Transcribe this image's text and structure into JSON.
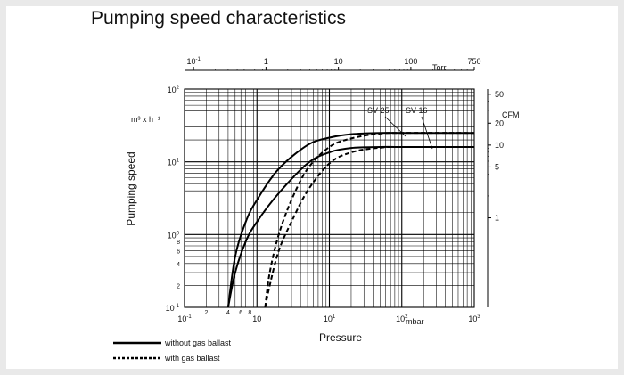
{
  "title": "Pumping speed characteristics",
  "legend": {
    "solid": "without gas ballast",
    "dashed": "with gas ballast"
  },
  "chart_data": {
    "type": "line",
    "title": "Pumping speed characteristics",
    "xlabel": "Pressure",
    "xunit": "mbar",
    "ylabel": "Pumping speed",
    "yunit": "m³ x h⁻¹",
    "x_scale": "log",
    "y_scale": "log",
    "xlim": [
      0.1,
      1000
    ],
    "ylim": [
      0.1,
      100
    ],
    "grid": true,
    "x_major_ticks": [
      {
        "base": "10",
        "exp": "-1"
      },
      {
        "base": "10",
        "exp": ""
      },
      {
        "base": "10",
        "exp": "1"
      },
      {
        "base": "10",
        "exp": "2"
      },
      {
        "base": "10",
        "exp": "3"
      }
    ],
    "x_minor_tick_labels": [
      {
        "value": 0.2,
        "label": "2"
      },
      {
        "value": 0.4,
        "label": "4"
      },
      {
        "value": 0.6,
        "label": "6"
      },
      {
        "value": 0.8,
        "label": "8"
      }
    ],
    "y_major_ticks": [
      {
        "base": "10",
        "exp": "-1"
      },
      {
        "base": "10",
        "exp": "0"
      },
      {
        "base": "10",
        "exp": "1"
      },
      {
        "base": "10",
        "exp": "2"
      }
    ],
    "y_minor_tick_labels": [
      {
        "value": 0.2,
        "label": "2"
      },
      {
        "value": 0.4,
        "label": "4"
      },
      {
        "value": 0.6,
        "label": "6"
      },
      {
        "value": 0.8,
        "label": "8"
      }
    ],
    "secondary_x_axis": {
      "unit": "Torr",
      "ticks": [
        {
          "base": "10",
          "exp": "-1",
          "value": 0.1
        },
        {
          "label": "1",
          "value": 1
        },
        {
          "label": "10",
          "value": 10
        },
        {
          "label": "100",
          "value": 100
        },
        {
          "label": "750",
          "value": 750
        }
      ]
    },
    "secondary_y_axis": {
      "unit": "CFM",
      "ticks": [
        {
          "label": "1",
          "value": 1
        },
        {
          "label": "5",
          "value": 5
        },
        {
          "label": "10",
          "value": 10
        },
        {
          "label": "20",
          "value": 20
        },
        {
          "label": "50",
          "value": 50
        }
      ]
    },
    "annotations": [
      "SV 25",
      "SV 16"
    ],
    "series": [
      {
        "name": "SV 25",
        "style": "solid",
        "x": [
          0.4,
          0.5,
          0.7,
          1,
          2,
          5,
          10,
          20,
          50,
          100,
          200,
          1000
        ],
        "y": [
          0.1,
          0.5,
          1.5,
          3,
          8,
          17,
          21.5,
          24,
          25,
          25,
          25,
          25
        ]
      },
      {
        "name": "SV 16",
        "style": "solid",
        "x": [
          0.4,
          0.5,
          0.7,
          1,
          2,
          5,
          10,
          20,
          50,
          100,
          200,
          1000
        ],
        "y": [
          0.1,
          0.3,
          0.8,
          1.5,
          3.7,
          9.5,
          13.5,
          15.5,
          16,
          16,
          16,
          16
        ]
      },
      {
        "name": "SV 25",
        "style": "dashed",
        "x": [
          1.3,
          1.5,
          2,
          3,
          5,
          10,
          20,
          50,
          100,
          1000
        ],
        "y": [
          0.1,
          0.3,
          1,
          3,
          8,
          16,
          21,
          24.5,
          25,
          25
        ]
      },
      {
        "name": "SV 16",
        "style": "dashed",
        "x": [
          1.3,
          1.5,
          2,
          3,
          5,
          10,
          20,
          50,
          100,
          1000
        ],
        "y": [
          0.1,
          0.2,
          0.6,
          1.5,
          4,
          9.5,
          13.5,
          15.7,
          16,
          16
        ]
      }
    ]
  }
}
